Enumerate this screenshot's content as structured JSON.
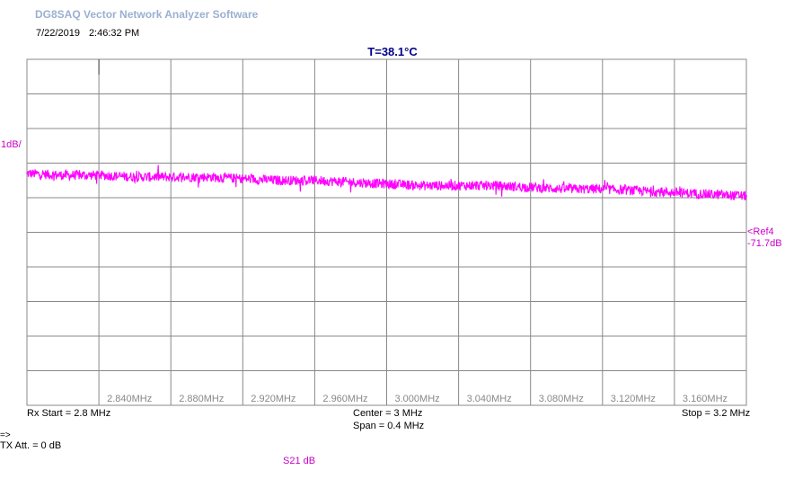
{
  "app_title": "DG8SAQ Vector Network Analyzer Software",
  "date": "7/22/2019",
  "time": "2:46:32 PM",
  "temperature": "T=38.1°C",
  "scale_label": "1dB/",
  "ref_marker": {
    "line1": "<Ref4",
    "line2": "-71.7dB"
  },
  "footer": {
    "rx_start": "Rx Start = 2.8 MHz",
    "center": "Center = 3 MHz",
    "span": "Span = 0.4 MHz",
    "stop": "Stop = 3.2 MHz",
    "arrow": "=>",
    "tx_att": "TX Att.  = 0 dB",
    "trace_label": "S21  dB"
  },
  "colors": {
    "trace": "#ff00ff",
    "grid": "#888888",
    "label": "#cc00cc"
  },
  "chart_data": {
    "type": "line",
    "title": "",
    "xlabel": "",
    "ylabel": "",
    "xlim": [
      2.8,
      3.2
    ],
    "x_unit": "MHz",
    "y_unit": "dB",
    "y_per_div": 1,
    "y_divisions": 10,
    "ref_value": -71.7,
    "ref_division": 4,
    "grid": true,
    "x_tick_labels": [
      "2.840MHz",
      "2.880MHz",
      "2.920MHz",
      "2.960MHz",
      "3.000MHz",
      "3.040MHz",
      "3.080MHz",
      "3.120MHz",
      "3.160MHz"
    ],
    "series": [
      {
        "x": [
          2.8,
          2.82,
          2.84,
          2.86,
          2.88,
          2.9,
          2.92,
          2.94,
          2.96,
          2.98,
          3.0,
          3.02,
          3.04,
          3.06,
          3.08,
          3.1,
          3.12,
          3.14,
          3.16,
          3.18,
          3.2
        ],
        "values": [
          -71.0,
          -71.05,
          -71.05,
          -71.1,
          -71.1,
          -71.1,
          -71.15,
          -71.2,
          -71.2,
          -71.25,
          -71.3,
          -71.35,
          -71.35,
          -71.35,
          -71.4,
          -71.45,
          -71.45,
          -71.5,
          -71.55,
          -71.6,
          -71.65
        ]
      }
    ]
  }
}
